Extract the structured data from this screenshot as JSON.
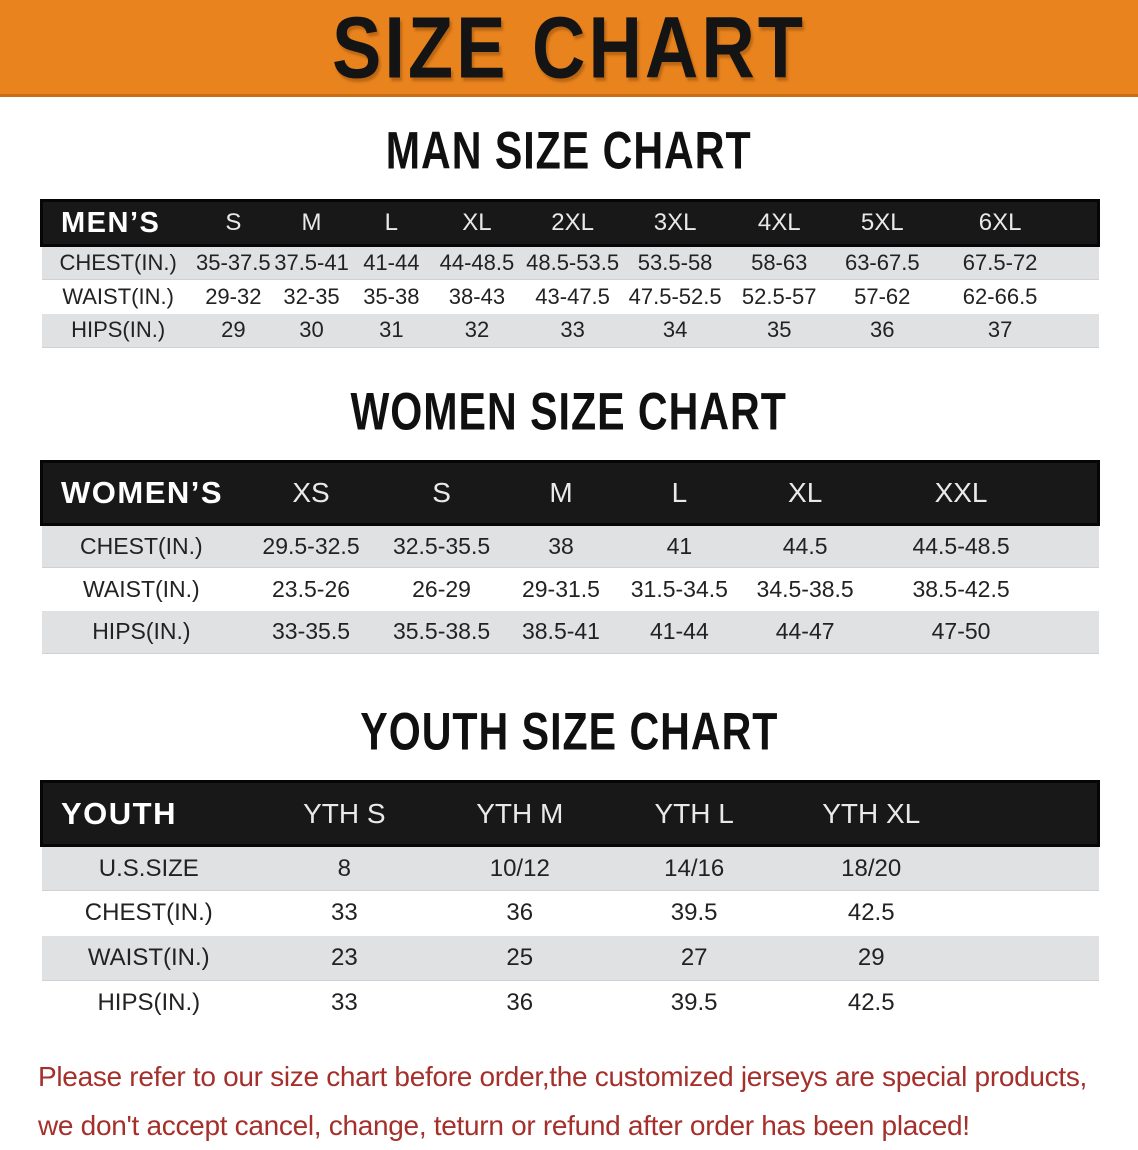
{
  "banner": {
    "title": "SIZE CHART"
  },
  "colors": {
    "banner_bg": "#e8831e",
    "banner_text": "#141414",
    "header_band": "#181818",
    "stripe": "#dfe1e2",
    "body_text": "#222222",
    "notice_text": "#a5302b"
  },
  "sections": [
    {
      "heading": "MAN SIZE CHART",
      "header_label": "MEN’S",
      "columns": [
        "S",
        "M",
        "L",
        "XL",
        "2XL",
        "3XL",
        "4XL",
        "5XL",
        "6XL"
      ],
      "rows": [
        {
          "label": "CHEST(IN.)",
          "values": [
            "35-37.5",
            "37.5-41",
            "41-44",
            "44-48.5",
            "48.5-53.5",
            "53.5-58",
            "58-63",
            "63-67.5",
            "67.5-72"
          ]
        },
        {
          "label": "WAIST(IN.)",
          "values": [
            "29-32",
            "32-35",
            "35-38",
            "38-43",
            "43-47.5",
            "47.5-52.5",
            "52.5-57",
            "57-62",
            "62-66.5"
          ]
        },
        {
          "label": "HIPS(IN.)",
          "values": [
            "29",
            "30",
            "31",
            "32",
            "33",
            "34",
            "35",
            "36",
            "37"
          ]
        }
      ]
    },
    {
      "heading": "WOMEN SIZE CHART",
      "header_label": "WOMEN’S",
      "columns": [
        "XS",
        "S",
        "M",
        "L",
        "XL",
        "XXL"
      ],
      "rows": [
        {
          "label": "CHEST(IN.)",
          "values": [
            "29.5-32.5",
            "32.5-35.5",
            "38",
            "41",
            "44.5",
            "44.5-48.5"
          ]
        },
        {
          "label": "WAIST(IN.)",
          "values": [
            "23.5-26",
            "26-29",
            "29-31.5",
            "31.5-34.5",
            "34.5-38.5",
            "38.5-42.5"
          ]
        },
        {
          "label": "HIPS(IN.)",
          "values": [
            "33-35.5",
            "35.5-38.5",
            "38.5-41",
            "41-44",
            "44-47",
            "47-50"
          ]
        }
      ]
    },
    {
      "heading": "YOUTH SIZE CHART",
      "header_label": "YOUTH",
      "columns": [
        "YTH S",
        "YTH M",
        "YTH L",
        "YTH XL"
      ],
      "rows": [
        {
          "label": "U.S.SIZE",
          "values": [
            "8",
            "10/12",
            "14/16",
            "18/20"
          ]
        },
        {
          "label": "CHEST(IN.)",
          "values": [
            "33",
            "36",
            "39.5",
            "42.5"
          ]
        },
        {
          "label": "WAIST(IN.)",
          "values": [
            "23",
            "25",
            "27",
            "29"
          ]
        },
        {
          "label": "HIPS(IN.)",
          "values": [
            "33",
            "36",
            "39.5",
            "42.5"
          ]
        }
      ]
    }
  ],
  "footer": {
    "line1": "Please refer to our size chart before order,the customized jerseys are special products,",
    "line2": "we don't accept cancel, change, teturn or refund after order has been placed!"
  }
}
